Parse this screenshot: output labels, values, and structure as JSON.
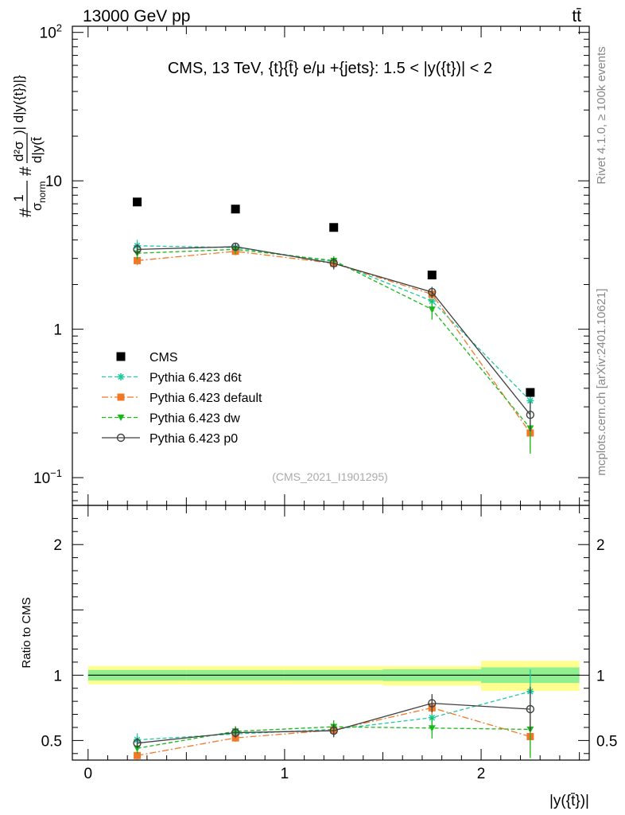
{
  "header": {
    "energy_label": "13000 GeV pp",
    "process_label": "tt̄"
  },
  "side_labels": {
    "rivet": "Rivet 4.1.0, ≥ 100k events",
    "mcplots": "mcplots.cern.ch [arXiv:2401.10621]"
  },
  "chart_data": [
    {
      "type": "scatter",
      "title": "CMS, 13 TeV, {t}{t̄} e/μ +{jets}: 1.5 < |y({t})| < 2",
      "watermark": "(CMS_2021_I1901295)",
      "ylabel_parts": {
        "hash1": "#",
        "one": "1",
        "sigma_norm": "σ",
        "norm_sub": "norm",
        "hash2": "#",
        "d2sigma": "d²σ",
        "upper_den": ")| d|y({t})|}",
        "lower_den": "d|y(t̄"
      },
      "yscale": "log",
      "ylim": [
        0.065,
        110
      ],
      "xlim": [
        -0.08,
        2.55
      ],
      "yticks": [
        {
          "value": 0.1,
          "base": "10",
          "exp": "−1"
        },
        {
          "value": 1,
          "base": "1",
          "exp": ""
        },
        {
          "value": 10,
          "base": "10",
          "exp": ""
        },
        {
          "value": 100,
          "base": "10",
          "exp": "2"
        }
      ],
      "legend": {
        "position": "center-left",
        "entries": [
          {
            "label": "CMS",
            "color": "#000000",
            "marker": "square",
            "dash": "none"
          },
          {
            "label": "Pythia 6.423 d6t",
            "color": "#20c9a0",
            "marker": "star",
            "dash": "dashed"
          },
          {
            "label": "Pythia 6.423 default",
            "color": "#f07828",
            "marker": "square",
            "dash": "dashdot"
          },
          {
            "label": "Pythia 6.423 dw",
            "color": "#18b818",
            "marker": "triangle-down",
            "dash": "dashed"
          },
          {
            "label": "Pythia 6.423 p0",
            "color": "#404040",
            "marker": "circle-open",
            "dash": "solid"
          }
        ]
      },
      "x": [
        0.25,
        0.75,
        1.25,
        1.75,
        2.25
      ],
      "data": {
        "name": "CMS",
        "values": [
          7.2,
          6.45,
          4.85,
          2.32,
          0.375
        ]
      },
      "series": [
        {
          "name": "Pythia 6.423 d6t",
          "color": "#20c9a0",
          "marker": "star",
          "dash": "dashed",
          "values": [
            3.65,
            3.55,
            2.85,
            1.55,
            0.33
          ],
          "errors": [
            0.35,
            0.25,
            0.2,
            0.15,
            0.06
          ]
        },
        {
          "name": "Pythia 6.423 default",
          "color": "#f07828",
          "marker": "square",
          "dash": "dashdot",
          "values": [
            2.9,
            3.35,
            2.78,
            1.72,
            0.2
          ],
          "errors": [
            0.2,
            0.2,
            0.2,
            0.15,
            0.05
          ]
        },
        {
          "name": "Pythia 6.423 dw",
          "color": "#18b818",
          "marker": "triangle-down",
          "dash": "dashed",
          "values": [
            3.25,
            3.45,
            2.9,
            1.36,
            0.215
          ],
          "errors": [
            0.3,
            0.25,
            0.2,
            0.2,
            0.07
          ]
        },
        {
          "name": "Pythia 6.423 p0",
          "color": "#404040",
          "marker": "circle-open",
          "dash": "solid",
          "values": [
            3.45,
            3.6,
            2.78,
            1.78,
            0.265
          ],
          "errors": [
            0.3,
            0.2,
            0.25,
            0.15,
            0.06
          ]
        }
      ]
    },
    {
      "type": "scatter",
      "ylabel": "Ratio to CMS",
      "xlabel": "|y({t̄})|",
      "ylim": [
        0.35,
        2.3
      ],
      "xlim": [
        -0.08,
        2.55
      ],
      "yticks": [
        0.5,
        1,
        2
      ],
      "ytick_labels": [
        "0.5",
        "1",
        "2"
      ],
      "xticks": [
        0,
        1,
        2
      ],
      "xtick_labels": [
        "0",
        "1",
        "2"
      ],
      "bins": [
        [
          0,
          0.5
        ],
        [
          0.5,
          1.0
        ],
        [
          1.0,
          1.5
        ],
        [
          1.5,
          2.0
        ],
        [
          2.0,
          2.5
        ]
      ],
      "band_yellow": [
        [
          0.93,
          1.07
        ],
        [
          0.93,
          1.07
        ],
        [
          0.93,
          1.07
        ],
        [
          0.92,
          1.07
        ],
        [
          0.88,
          1.11
        ]
      ],
      "band_green": [
        [
          0.96,
          1.04
        ],
        [
          0.96,
          1.04
        ],
        [
          0.96,
          1.04
        ],
        [
          0.955,
          1.045
        ],
        [
          0.94,
          1.06
        ]
      ],
      "band_colors": {
        "yellow": "#ffff90",
        "green": "#90f090"
      },
      "x": [
        0.25,
        0.75,
        1.25,
        1.75,
        2.25
      ],
      "series": [
        {
          "name": "Pythia 6.423 d6t",
          "color": "#20c9a0",
          "marker": "star",
          "dash": "dashed",
          "values": [
            0.505,
            0.55,
            0.585,
            0.675,
            0.875
          ],
          "errors": [
            0.05,
            0.04,
            0.05,
            0.06,
            0.17
          ]
        },
        {
          "name": "Pythia 6.423 default",
          "color": "#f07828",
          "marker": "square",
          "dash": "dashdot",
          "values": [
            0.385,
            0.52,
            0.58,
            0.75,
            0.53
          ],
          "errors": [
            0.03,
            0.03,
            0.04,
            0.05,
            0.15
          ]
        },
        {
          "name": "Pythia 6.423 dw",
          "color": "#18b818",
          "marker": "triangle-down",
          "dash": "dashed",
          "values": [
            0.44,
            0.57,
            0.605,
            0.595,
            0.585
          ],
          "errors": [
            0.04,
            0.04,
            0.05,
            0.08,
            0.22
          ]
        },
        {
          "name": "Pythia 6.423 p0",
          "color": "#404040",
          "marker": "circle-open",
          "dash": "solid",
          "values": [
            0.48,
            0.56,
            0.575,
            0.785,
            0.74
          ],
          "errors": [
            0.04,
            0.04,
            0.05,
            0.07,
            0.17
          ]
        }
      ]
    }
  ]
}
